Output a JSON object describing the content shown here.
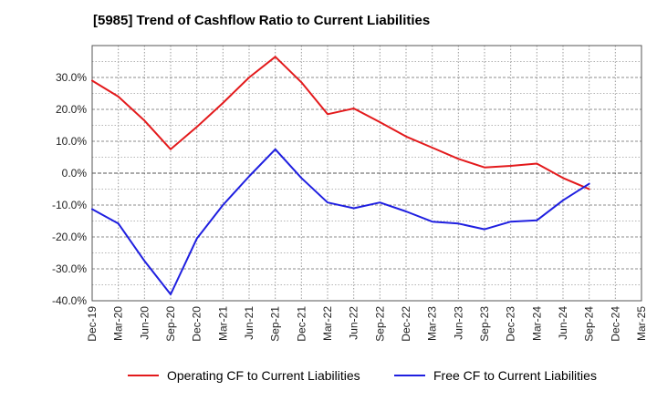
{
  "chart_data": {
    "type": "line",
    "title": "[5985]  Trend of Cashflow Ratio to Current Liabilities",
    "xlabel": "",
    "ylabel": "",
    "x": [
      "Dec-19",
      "Mar-20",
      "Jun-20",
      "Sep-20",
      "Dec-20",
      "Mar-21",
      "Jun-21",
      "Sep-21",
      "Dec-21",
      "Mar-22",
      "Jun-22",
      "Sep-22",
      "Dec-22",
      "Mar-23",
      "Jun-23",
      "Sep-23",
      "Dec-23",
      "Mar-24",
      "Jun-24",
      "Sep-24",
      "Dec-24",
      "Mar-25"
    ],
    "ylim": [
      -40,
      40
    ],
    "yticks": [
      30,
      20,
      10,
      0,
      -10,
      -20,
      -30,
      -40
    ],
    "ytick_labels": [
      "30.0%",
      "20.0%",
      "10.0%",
      "0.0%",
      "-10.0%",
      "-20.0%",
      "-30.0%",
      "-40.0%"
    ],
    "grid": true,
    "legend_position": "bottom",
    "series": [
      {
        "name": "Operating CF to Current Liabilities",
        "color": "#e31a1c",
        "values": [
          29.0,
          24.0,
          16.5,
          7.5,
          14.5,
          22.0,
          30.0,
          36.5,
          28.5,
          18.5,
          20.3,
          16.0,
          11.5,
          8.0,
          4.5,
          1.8,
          2.3,
          3.0,
          -1.5,
          -5.0,
          null,
          null
        ]
      },
      {
        "name": "Free CF to Current Liabilities",
        "color": "#1f1fe0",
        "values": [
          -11.3,
          -15.8,
          -27.5,
          -38.0,
          -20.5,
          -10.0,
          -1.0,
          7.5,
          -1.5,
          -9.2,
          -11.0,
          -9.2,
          -12.0,
          -15.2,
          -15.8,
          -17.6,
          -15.2,
          -14.8,
          -8.5,
          -3.3,
          null,
          null
        ]
      }
    ]
  }
}
